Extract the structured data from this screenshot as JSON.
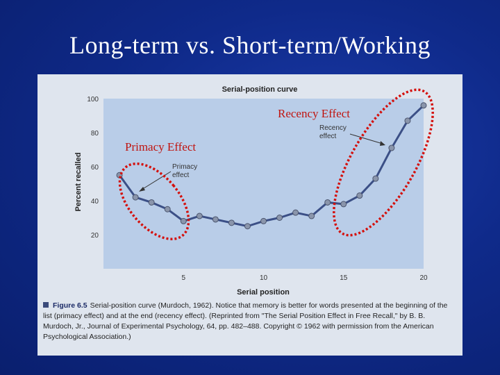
{
  "slide": {
    "title": "Long-term vs. Short-term/Working"
  },
  "overlay": {
    "primacy_label": "Primacy Effect",
    "recency_label": "Recency Effect"
  },
  "figure": {
    "chart_title": "Serial-position curve",
    "primacy_annotation": [
      "Primacy",
      "effect"
    ],
    "recency_annotation": [
      "Recency",
      "effect"
    ],
    "caption_number": "Figure 6.5",
    "caption_text": "Serial-position curve (Murdoch, 1962). Notice that memory is better for words presented at the beginning of the list (primacy effect) and at the end (recency effect). (Reprinted from \"The Serial Position Effect in Free Recall,\" by B. B. Murdoch, Jr., Journal of Experimental Psychology, 64, pp. 482–488. Copyright © 1962 with permission from the American Psychological Association.)"
  },
  "colors": {
    "line": "#3b4f86",
    "marker": "#8a95ab",
    "highlight": "#d4100c",
    "plot_background": "#b9cde8"
  },
  "chart_data": {
    "type": "line",
    "title": "Serial-position curve",
    "xlabel": "Serial position",
    "ylabel": "Percent recalled",
    "xlim": [
      0,
      20
    ],
    "ylim": [
      0,
      100
    ],
    "xticks": [
      5,
      10,
      15,
      20
    ],
    "yticks": [
      20,
      40,
      60,
      80,
      100
    ],
    "grid": false,
    "series": [
      {
        "x": [
          1,
          2,
          3,
          4,
          5,
          6,
          7,
          8,
          9,
          10,
          11,
          12,
          13,
          14,
          15,
          16,
          17,
          18,
          19,
          20
        ],
        "values": [
          55,
          42,
          39,
          35,
          28,
          31,
          29,
          27,
          25,
          28,
          30,
          33,
          31,
          39,
          38,
          43,
          53,
          71,
          87,
          96
        ]
      }
    ]
  }
}
